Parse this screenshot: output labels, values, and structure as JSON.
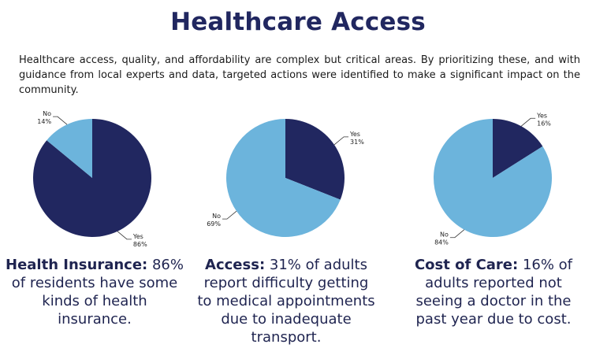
{
  "title": "Healthcare Access",
  "intro": "Healthcare access, quality, and affordability are complex but critical areas. By prioritizing these, and with guidance from local experts and data, targeted actions were identified to make a significant impact on the community.",
  "colors": {
    "yes": "#212760",
    "no": "#6cb4dc"
  },
  "captions": [
    {
      "heading": "Health Insurance:",
      "text": " 86% of residents have some kinds of health insurance."
    },
    {
      "heading": "Access:",
      "text": " 31% of adults report difficulty getting to medical appointments due to inadequate transport."
    },
    {
      "heading": "Cost of Care:",
      "text": " 16% of adults reported not seeing a doctor in the past year due to cost."
    }
  ],
  "chart_data": [
    {
      "type": "pie",
      "slices": [
        {
          "label": "Yes",
          "value": 86,
          "display": "86%"
        },
        {
          "label": "No",
          "value": 14,
          "display": "14%"
        }
      ]
    },
    {
      "type": "pie",
      "slices": [
        {
          "label": "Yes",
          "value": 31,
          "display": "31%"
        },
        {
          "label": "No",
          "value": 69,
          "display": "69%"
        }
      ]
    },
    {
      "type": "pie",
      "slices": [
        {
          "label": "Yes",
          "value": 16,
          "display": "16%"
        },
        {
          "label": "No",
          "value": 84,
          "display": "84%"
        }
      ]
    }
  ]
}
